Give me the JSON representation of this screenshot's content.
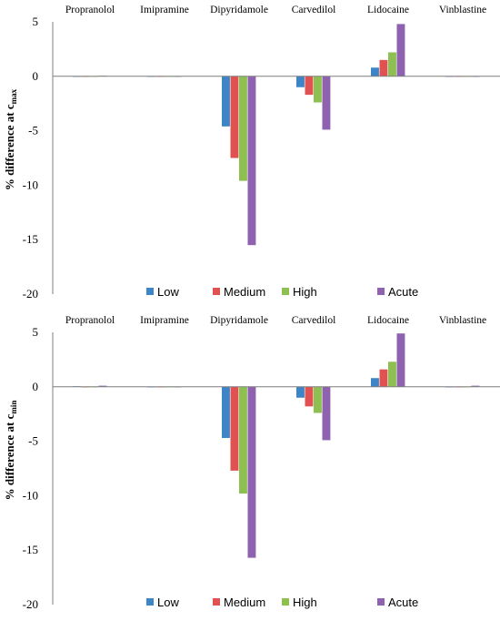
{
  "colors": {
    "Low": "#3D85C6",
    "Medium": "#E05252",
    "High": "#8DC050",
    "Acute": "#8F62B0"
  },
  "chart_data": [
    {
      "type": "bar",
      "ylabel_main": "% difference at c",
      "ylabel_sub": "max",
      "ylim": [
        -20,
        5
      ],
      "yticks": [
        "5",
        "0",
        "-5",
        "-10",
        "-15",
        "-20"
      ],
      "categories": [
        "Propranolol",
        "Imipramine",
        "Dipyridamole",
        "Carvedilol",
        "Lidocaine",
        "Vinblastine"
      ],
      "legend_position": "bottom",
      "series": [
        {
          "name": "Low",
          "values": [
            0.0,
            -0.05,
            -4.6,
            -1.0,
            0.8,
            -0.05
          ]
        },
        {
          "name": "Medium",
          "values": [
            0.0,
            -0.05,
            -7.5,
            -1.7,
            1.5,
            -0.05
          ]
        },
        {
          "name": "High",
          "values": [
            0.0,
            -0.05,
            -9.6,
            -2.4,
            2.2,
            -0.05
          ]
        },
        {
          "name": "Acute",
          "values": [
            0.05,
            -0.05,
            -15.5,
            -4.9,
            4.8,
            -0.05
          ]
        }
      ]
    },
    {
      "type": "bar",
      "ylabel_main": "% difference at c",
      "ylabel_sub": "min",
      "ylim": [
        -20,
        5
      ],
      "yticks": [
        "5",
        "0",
        "-5",
        "-10",
        "-15",
        "-20"
      ],
      "categories": [
        "Propranolol",
        "Imipramine",
        "Dipyridamole",
        "Carvedilol",
        "Lidocaine",
        "Vinblastine"
      ],
      "legend_position": "bottom",
      "series": [
        {
          "name": "Low",
          "values": [
            0.05,
            -0.05,
            -4.7,
            -1.0,
            0.8,
            0.0
          ]
        },
        {
          "name": "Medium",
          "values": [
            0.0,
            -0.05,
            -7.7,
            -1.8,
            1.6,
            0.0
          ]
        },
        {
          "name": "High",
          "values": [
            0.0,
            -0.05,
            -9.8,
            -2.4,
            2.3,
            0.0
          ]
        },
        {
          "name": "Acute",
          "values": [
            0.1,
            -0.05,
            -15.7,
            -4.9,
            4.9,
            0.1
          ]
        }
      ]
    }
  ]
}
